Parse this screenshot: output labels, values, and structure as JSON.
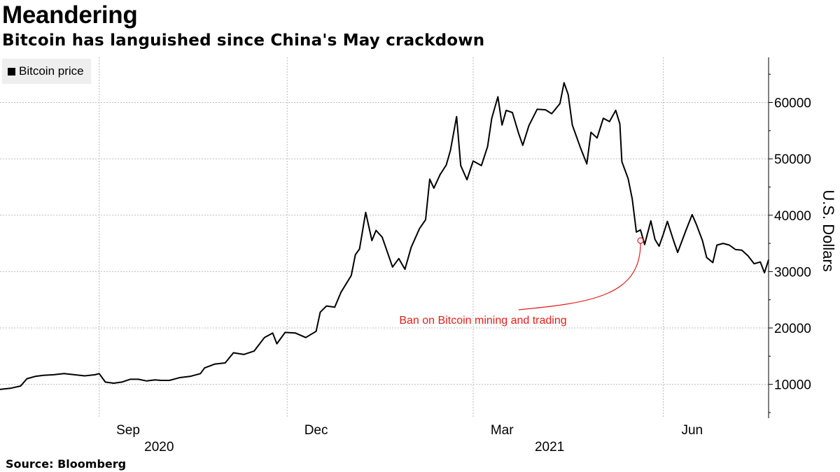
{
  "title": "Meandering",
  "subtitle": "Bitcoin has languished since China's May crackdown",
  "source": "Source: Bloomberg",
  "colors": {
    "line": "#000000",
    "annotation": "#e0201b",
    "grid": "#bbbbbb",
    "legend_bg": "#eeeeee"
  },
  "chart_data": {
    "type": "line",
    "title": "Meandering",
    "subtitle": "Bitcoin has languished since China's May crackdown",
    "ylabel": "U.S. Dollars",
    "ylim": [
      4000,
      68000
    ],
    "xlim": [
      "2020-07-15",
      "2021-07-22"
    ],
    "yticks": [
      10000,
      20000,
      30000,
      40000,
      50000,
      60000
    ],
    "ytick_labels": [
      "10000",
      "20000",
      "30000",
      "40000",
      "50000",
      "60000"
    ],
    "xticks": [
      {
        "date": "2020-09-15",
        "label": "Sep"
      },
      {
        "date": "2020-12-15",
        "label": "Dec"
      },
      {
        "date": "2021-03-15",
        "label": "Mar"
      },
      {
        "date": "2021-06-15",
        "label": "Jun"
      }
    ],
    "year_labels": [
      {
        "date": "2020-09-30",
        "label": "2020"
      },
      {
        "date": "2021-04-07",
        "label": "2021"
      }
    ],
    "grid": true,
    "legend": {
      "position": "top-left",
      "entries": [
        "Bitcoin price"
      ]
    },
    "series": [
      {
        "name": "Bitcoin price",
        "points": [
          [
            "2020-07-15",
            9100
          ],
          [
            "2020-07-20",
            9300
          ],
          [
            "2020-07-25",
            9700
          ],
          [
            "2020-07-28",
            11000
          ],
          [
            "2020-08-01",
            11400
          ],
          [
            "2020-08-05",
            11600
          ],
          [
            "2020-08-10",
            11700
          ],
          [
            "2020-08-15",
            11900
          ],
          [
            "2020-08-20",
            11700
          ],
          [
            "2020-08-25",
            11500
          ],
          [
            "2020-08-30",
            11700
          ],
          [
            "2020-09-01",
            11900
          ],
          [
            "2020-09-04",
            10400
          ],
          [
            "2020-09-08",
            10200
          ],
          [
            "2020-09-12",
            10400
          ],
          [
            "2020-09-16",
            10900
          ],
          [
            "2020-09-20",
            10900
          ],
          [
            "2020-09-24",
            10600
          ],
          [
            "2020-09-28",
            10800
          ],
          [
            "2020-10-01",
            10700
          ],
          [
            "2020-10-05",
            10700
          ],
          [
            "2020-10-10",
            11200
          ],
          [
            "2020-10-15",
            11400
          ],
          [
            "2020-10-20",
            11900
          ],
          [
            "2020-10-22",
            12900
          ],
          [
            "2020-10-27",
            13600
          ],
          [
            "2020-11-01",
            13800
          ],
          [
            "2020-11-05",
            15600
          ],
          [
            "2020-11-10",
            15300
          ],
          [
            "2020-11-15",
            15900
          ],
          [
            "2020-11-20",
            18300
          ],
          [
            "2020-11-24",
            19100
          ],
          [
            "2020-11-26",
            17200
          ],
          [
            "2020-11-30",
            19200
          ],
          [
            "2020-12-05",
            19100
          ],
          [
            "2020-12-10",
            18300
          ],
          [
            "2020-12-15",
            19400
          ],
          [
            "2020-12-17",
            22800
          ],
          [
            "2020-12-20",
            23900
          ],
          [
            "2020-12-24",
            23700
          ],
          [
            "2020-12-27",
            26300
          ],
          [
            "2021-01-01",
            29300
          ],
          [
            "2021-01-03",
            33000
          ],
          [
            "2021-01-05",
            34000
          ],
          [
            "2021-01-08",
            40500
          ],
          [
            "2021-01-11",
            35500
          ],
          [
            "2021-01-13",
            37300
          ],
          [
            "2021-01-16",
            36100
          ],
          [
            "2021-01-21",
            30800
          ],
          [
            "2021-01-24",
            32300
          ],
          [
            "2021-01-27",
            30400
          ],
          [
            "2021-01-30",
            34300
          ],
          [
            "2021-02-03",
            37600
          ],
          [
            "2021-02-06",
            39200
          ],
          [
            "2021-02-08",
            46400
          ],
          [
            "2021-02-10",
            44800
          ],
          [
            "2021-02-13",
            47200
          ],
          [
            "2021-02-16",
            48900
          ],
          [
            "2021-02-18",
            51500
          ],
          [
            "2021-02-21",
            57500
          ],
          [
            "2021-02-23",
            48800
          ],
          [
            "2021-02-26",
            46300
          ],
          [
            "2021-03-01",
            49600
          ],
          [
            "2021-03-05",
            48800
          ],
          [
            "2021-03-08",
            52200
          ],
          [
            "2021-03-10",
            57200
          ],
          [
            "2021-03-13",
            61000
          ],
          [
            "2021-03-15",
            56000
          ],
          [
            "2021-03-17",
            58600
          ],
          [
            "2021-03-20",
            58200
          ],
          [
            "2021-03-23",
            54500
          ],
          [
            "2021-03-25",
            52400
          ],
          [
            "2021-03-28",
            55900
          ],
          [
            "2021-04-01",
            58800
          ],
          [
            "2021-04-05",
            58700
          ],
          [
            "2021-04-08",
            58000
          ],
          [
            "2021-04-12",
            59800
          ],
          [
            "2021-04-14",
            63500
          ],
          [
            "2021-04-16",
            61400
          ],
          [
            "2021-04-18",
            56000
          ],
          [
            "2021-04-22",
            51900
          ],
          [
            "2021-04-25",
            49100
          ],
          [
            "2021-04-27",
            54700
          ],
          [
            "2021-04-30",
            53700
          ],
          [
            "2021-05-03",
            57200
          ],
          [
            "2021-05-06",
            56600
          ],
          [
            "2021-05-09",
            58600
          ],
          [
            "2021-05-11",
            56200
          ],
          [
            "2021-05-12",
            49500
          ],
          [
            "2021-05-15",
            46500
          ],
          [
            "2021-05-17",
            42900
          ],
          [
            "2021-05-19",
            37000
          ],
          [
            "2021-05-21",
            37400
          ],
          [
            "2021-05-23",
            34800
          ],
          [
            "2021-05-26",
            39000
          ],
          [
            "2021-05-28",
            35700
          ],
          [
            "2021-05-30",
            34500
          ],
          [
            "2021-06-01",
            36600
          ],
          [
            "2021-06-03",
            38900
          ],
          [
            "2021-06-06",
            35500
          ],
          [
            "2021-06-08",
            33400
          ],
          [
            "2021-06-12",
            37300
          ],
          [
            "2021-06-15",
            40100
          ],
          [
            "2021-06-17",
            38400
          ],
          [
            "2021-06-20",
            35500
          ],
          [
            "2021-06-22",
            32500
          ],
          [
            "2021-06-25",
            31600
          ],
          [
            "2021-06-27",
            34700
          ],
          [
            "2021-06-30",
            35000
          ],
          [
            "2021-07-03",
            34700
          ],
          [
            "2021-07-06",
            33900
          ],
          [
            "2021-07-09",
            33800
          ],
          [
            "2021-07-12",
            32800
          ],
          [
            "2021-07-15",
            31400
          ],
          [
            "2021-07-18",
            31700
          ],
          [
            "2021-07-20",
            29800
          ],
          [
            "2021-07-22",
            32100
          ]
        ]
      }
    ],
    "annotations": [
      {
        "text": "Ban on Bitcoin mining and trading",
        "date": "2021-05-21",
        "value": 35500
      }
    ]
  }
}
